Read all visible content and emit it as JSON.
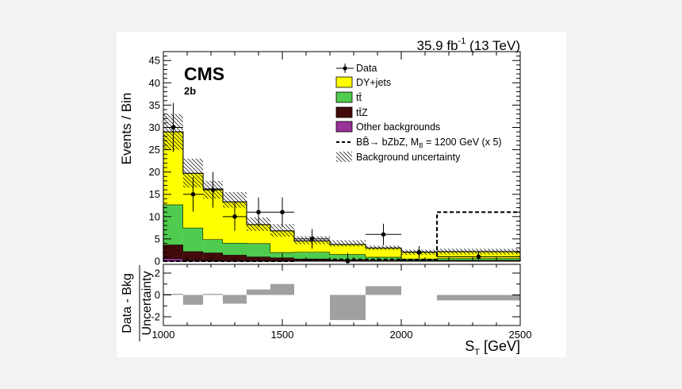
{
  "header": {
    "lumi_main": "35.9 fb",
    "lumi_sup": "-1",
    "lumi_tail": " (13 TeV)"
  },
  "labels": {
    "experiment": "CMS",
    "category": "2b"
  },
  "chart_data": [
    {
      "type": "bar",
      "stacked": true,
      "ylabel": "Events / Bin",
      "ylim": [
        0,
        47
      ],
      "yticks": [
        0,
        5,
        10,
        15,
        20,
        25,
        30,
        35,
        40,
        45
      ],
      "xlim": [
        1000,
        2500
      ],
      "bin_edges": [
        1000,
        1083,
        1167,
        1250,
        1350,
        1450,
        1550,
        1700,
        1850,
        2000,
        2150,
        2500
      ],
      "series": [
        {
          "name": "Other backgrounds",
          "color": "#993399",
          "values": [
            0.6,
            0.3,
            0.2,
            0.1,
            0.1,
            0.1,
            0.05,
            0.05,
            0.05,
            0.05,
            0.05
          ]
        },
        {
          "name": "tt̄Z",
          "color": "#420a0a",
          "values": [
            3.1,
            1.9,
            1.7,
            1.3,
            0.9,
            0.7,
            0.5,
            0.3,
            0.2,
            0.2,
            0.2
          ]
        },
        {
          "name": "tt̄",
          "color": "#4fcc4f",
          "values": [
            9.0,
            5.3,
            3.0,
            2.7,
            3.0,
            1.2,
            1.5,
            1.2,
            0.7,
            0.3,
            0.4
          ]
        },
        {
          "name": "DY+jets",
          "color": "#ffff00",
          "values": [
            16.3,
            12.2,
            11.3,
            9.2,
            4.2,
            4.8,
            2.5,
            2.2,
            2.0,
            1.5,
            1.5
          ]
        }
      ],
      "uncertainty": {
        "name": "Background uncertainty",
        "down": [
          25.0,
          16.5,
          14.0,
          12.0,
          6.8,
          5.5,
          3.8,
          3.3,
          2.5,
          1.4,
          1.5
        ],
        "up": [
          33.0,
          23.0,
          18.0,
          15.5,
          9.8,
          8.3,
          5.6,
          4.7,
          3.5,
          2.6,
          2.8
        ]
      },
      "data": {
        "name": "Data",
        "x": [
          1041.5,
          1125,
          1208.5,
          1300,
          1400,
          1500,
          1625,
          1775,
          1925,
          2075,
          2325
        ],
        "y": [
          30,
          15,
          16,
          10,
          11,
          11,
          5,
          0,
          6,
          2,
          1
        ],
        "yerr": [
          5.5,
          3.9,
          4.0,
          3.2,
          3.3,
          3.3,
          2.2,
          1.8,
          2.4,
          1.4,
          1.0
        ]
      },
      "signal": {
        "name_prefix": "BB̄",
        "name_arrow": "→",
        "name_decay": " bZbZ, M",
        "name_sub": "B",
        "name_tail": " = 1200 GeV (x 5)",
        "values": [
          0,
          0,
          0,
          0,
          0,
          0,
          0.2,
          0.4,
          0.4,
          0.3,
          11
        ]
      },
      "legend_position": "top-right"
    },
    {
      "type": "bar",
      "ylabel_top": "Data - Bkg",
      "ylabel_bottom": "Uncertainty",
      "ylim": [
        -2.8,
        2.8
      ],
      "yticks": [
        -2,
        0,
        2
      ],
      "xlabel_main": "S",
      "xlabel_sub": "T",
      "xlabel_tail": " [GeV]",
      "xlim": [
        1000,
        2500
      ],
      "xticks": [
        1000,
        1500,
        2000,
        2500
      ],
      "bin_edges": [
        1000,
        1083,
        1167,
        1250,
        1350,
        1450,
        1550,
        1700,
        1850,
        2000,
        2150,
        2500
      ],
      "values": [
        0.1,
        -0.9,
        0.1,
        -0.8,
        0.5,
        1.0,
        0.0,
        -2.3,
        0.8,
        0.0,
        -0.5
      ],
      "color": "#a0a0a0"
    }
  ]
}
